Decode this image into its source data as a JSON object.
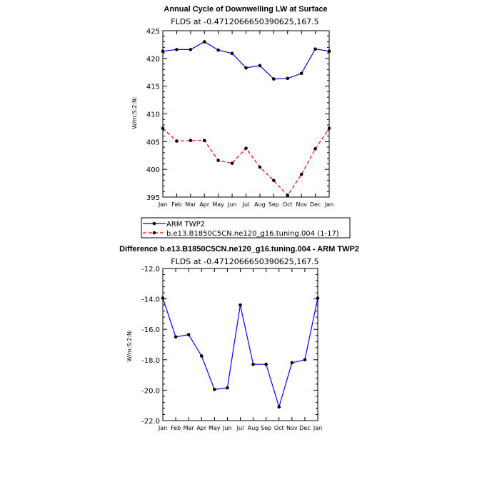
{
  "chart_data": [
    {
      "type": "line",
      "title": "Annual Cycle of Downwelling LW at Surface",
      "subtitle": "FLDS at -0.4712066650390625,167.5",
      "xlabel": "",
      "ylabel": "W/m:S:2:N:",
      "categories": [
        "Jan",
        "Feb",
        "Mar",
        "Apr",
        "May",
        "Jun",
        "Jul",
        "Aug",
        "Sep",
        "Oct",
        "Nov",
        "Dec",
        "Jan"
      ],
      "ylim": [
        395,
        425
      ],
      "yticks": [
        "395",
        "400",
        "405",
        "410",
        "415",
        "420",
        "425"
      ],
      "legend_position": "bottom",
      "series": [
        {
          "name": "ARM TWP2",
          "color": "#0000ff",
          "dash": "solid",
          "values": [
            421.3,
            421.6,
            421.6,
            423.0,
            421.5,
            420.9,
            418.3,
            418.7,
            416.3,
            416.4,
            417.3,
            421.7,
            421.3
          ]
        },
        {
          "name": "b.e13.B1850C5CN.ne120_g16.tuning.004 (1-17)",
          "color": "#ff0000",
          "dash": "dashed",
          "values": [
            407.4,
            405.1,
            405.2,
            405.2,
            401.6,
            401.1,
            403.8,
            400.4,
            398.0,
            395.3,
            399.1,
            403.7,
            407.4
          ]
        }
      ]
    },
    {
      "type": "line",
      "title": "Difference b.e13.B1850C5CN.ne120_g16.tuning.004 - ARM TWP2",
      "subtitle": "FLDS at -0.4712066650390625,167.5",
      "xlabel": "",
      "ylabel": "W/m:S:2:N:",
      "categories": [
        "Jan",
        "Feb",
        "Mar",
        "Apr",
        "May",
        "Jun",
        "Jul",
        "Aug",
        "Sep",
        "Oct",
        "Nov",
        "Dec",
        "Jan"
      ],
      "ylim": [
        -22,
        -12
      ],
      "yticks": [
        "-22.0",
        "-20.0",
        "-18.0",
        "-16.0",
        "-14.0",
        "-12.0"
      ],
      "series": [
        {
          "color": "#0000ff",
          "dash": "solid",
          "values": [
            -13.95,
            -16.5,
            -16.35,
            -17.75,
            -19.95,
            -19.85,
            -14.4,
            -18.3,
            -18.3,
            -21.1,
            -18.2,
            -18.0,
            -13.95
          ]
        }
      ]
    }
  ]
}
